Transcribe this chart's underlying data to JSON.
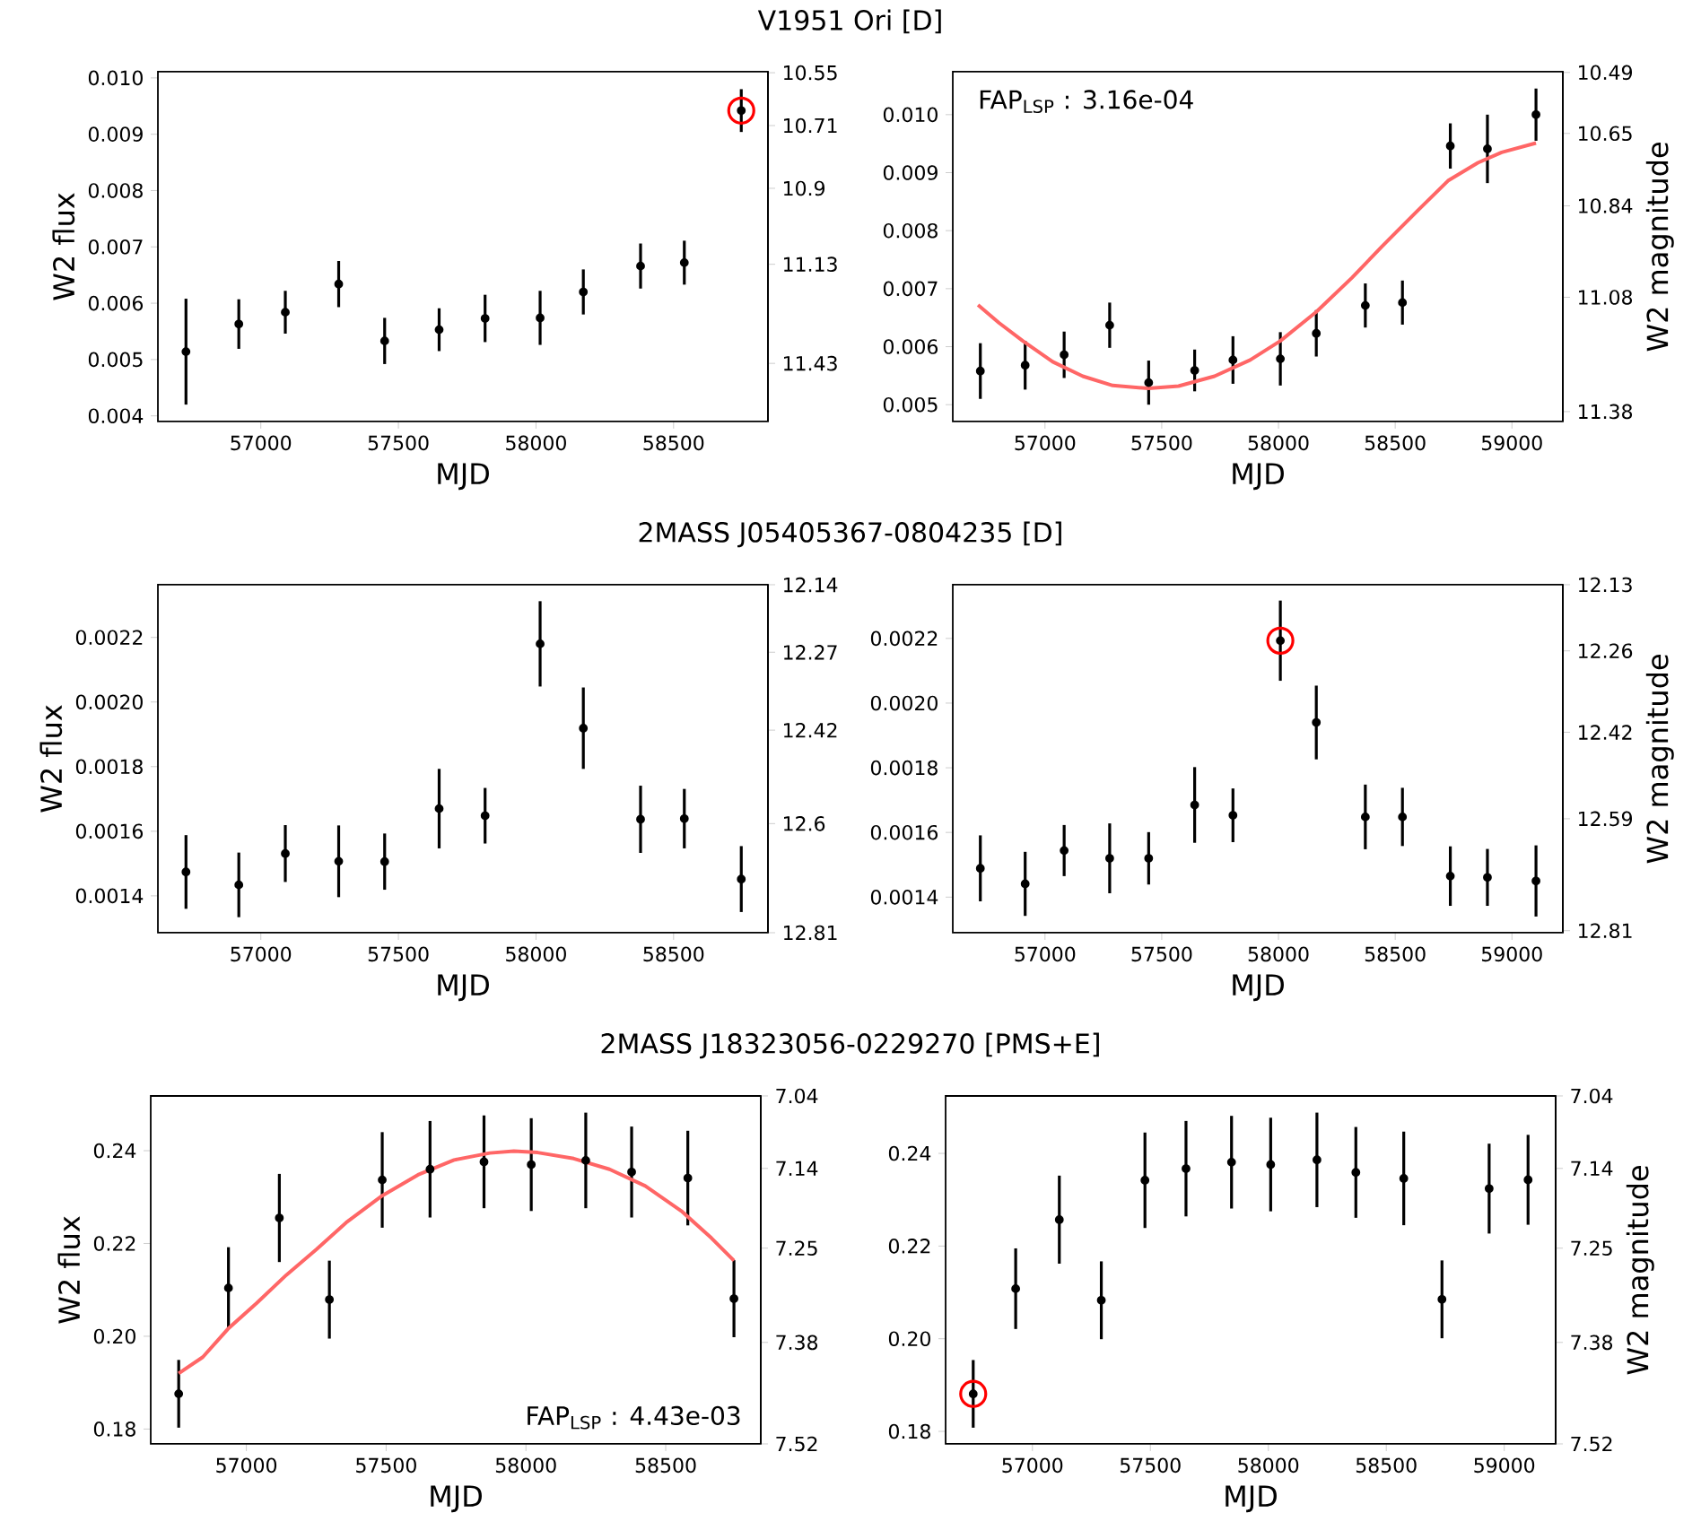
{
  "chart_data": [
    {
      "type": "scatter",
      "title": "V1951 Ori  [D]",
      "xlabel": "MJD",
      "ylabel": "W2 flux",
      "marker": "circle",
      "xlim": [
        56626,
        58843
      ],
      "xticks": [
        57000,
        57500,
        58000,
        58500
      ],
      "ylim": [
        0.0039,
        0.01011
      ],
      "yticks": [
        0.004,
        0.005,
        0.006,
        0.007,
        0.008,
        0.009,
        {
          "value": 0.01,
          "label": "0.010"
        }
      ],
      "y2lim": [
        11.606,
        10.547
      ],
      "y2ticks": [
        10.55,
        10.71,
        10.9,
        11.13,
        11.43
      ],
      "series": [
        {
          "color": "#000000",
          "x": [
            56728,
            56920,
            57089,
            57283,
            57450,
            57648,
            57815,
            58015,
            58172,
            58380,
            58539,
            58746
          ],
          "values": [
            0.00514,
            0.00563,
            0.00584,
            0.00634,
            0.00533,
            0.00553,
            0.00573,
            0.00574,
            0.0062,
            0.00666,
            0.00672,
            0.00942
          ],
          "errors": [
            0.00094,
            0.00044,
            0.00038,
            0.00041,
            0.00041,
            0.00038,
            0.00042,
            0.00048,
            0.0004,
            0.0004,
            0.00039,
            0.00038
          ]
        },
        {
          "color": "#ff0000",
          "x": [
            58746
          ],
          "values": [
            0.00942
          ]
        }
      ]
    },
    {
      "type": "scatter",
      "xlabel": "MJD",
      "y2label": "W2 magnitude",
      "marker": "circle",
      "annotations": [
        "FAP$_{LSP}$ : 3.16e-04"
      ],
      "xlim": [
        56605,
        59218
      ],
      "xticks": [
        57000,
        57500,
        58000,
        58500,
        59000
      ],
      "ylim": [
        0.00471,
        0.01074
      ],
      "yticks": [
        0.005,
        0.006,
        0.007,
        0.008,
        0.009,
        {
          "value": 0.01,
          "label": "0.010"
        }
      ],
      "y2lim": [
        11.406,
        10.488
      ],
      "y2ticks": [
        10.49,
        10.65,
        10.84,
        11.08,
        11.38
      ],
      "series": [
        {
          "color": "#000000",
          "x": [
            56723,
            56915,
            57082,
            57277,
            57444,
            57641,
            57805,
            58008,
            58162,
            58372,
            58531,
            58736,
            58895,
            59103
          ],
          "values": [
            0.00558,
            0.00568,
            0.00586,
            0.00637,
            0.00538,
            0.00559,
            0.00577,
            0.00579,
            0.00623,
            0.00671,
            0.00676,
            0.00946,
            0.00941,
            0.01
          ],
          "errors": [
            0.00048,
            0.00042,
            0.0004,
            0.00039,
            0.00038,
            0.00036,
            0.00041,
            0.00046,
            0.0004,
            0.00038,
            0.00038,
            0.00039,
            0.00059,
            0.00045
          ]
        },
        {
          "type": "line",
          "marker": "none",
          "color": "#ff6666",
          "x": [
            56713,
            56803,
            56905,
            57033,
            57162,
            57290,
            57444,
            57572,
            57726,
            57879,
            58008,
            58162,
            58315,
            58444,
            58597,
            58726,
            58854,
            58956,
            59103
          ],
          "values": [
            0.00672,
            0.00641,
            0.0061,
            0.00574,
            0.00549,
            0.00533,
            0.00528,
            0.00532,
            0.00549,
            0.00577,
            0.0061,
            0.0066,
            0.00719,
            0.00773,
            0.00835,
            0.00886,
            0.00917,
            0.00935,
            0.00951
          ]
        }
      ]
    },
    {
      "type": "scatter",
      "title": "2MASS J05405367-0804235  [D]",
      "xlabel": "MJD",
      "ylabel": "W2 flux",
      "marker": "circle",
      "xlim": [
        56626,
        58843
      ],
      "xticks": [
        57000,
        57500,
        58000,
        58500
      ],
      "ylim": [
        0.001286,
        0.002363
      ],
      "yticks": [
        0.0014,
        0.0016,
        0.0018,
        {
          "value": 0.002,
          "label": "0.0020"
        },
        0.0022
      ],
      "y2lim": [
        12.81,
        12.14
      ],
      "y2ticks": [
        12.14,
        12.27,
        12.42,
        12.6,
        12.81
      ],
      "series": [
        {
          "color": "#000000",
          "x": [
            56728,
            56920,
            57089,
            57283,
            57450,
            57648,
            57815,
            58015,
            58172,
            58380,
            58539,
            58746
          ],
          "values": [
            0.001474,
            0.001434,
            0.001531,
            0.001507,
            0.001506,
            0.00167,
            0.001648,
            0.00218,
            0.001919,
            0.001637,
            0.001639,
            0.001452
          ],
          "errors": [
            0.000114,
            0.0001,
            8.8e-05,
            0.000111,
            8.7e-05,
            0.000123,
            8.6e-05,
            0.000132,
            0.000126,
            0.000104,
            9.2e-05,
            0.000102
          ]
        }
      ]
    },
    {
      "type": "scatter",
      "xlabel": "MJD",
      "y2label": "W2 magnitude",
      "marker": "circle",
      "xlim": [
        56605,
        59218
      ],
      "xticks": [
        57000,
        57500,
        58000,
        58500,
        59000
      ],
      "ylim": [
        0.00129,
        0.002366
      ],
      "yticks": [
        0.0014,
        0.0016,
        0.0018,
        {
          "value": 0.002,
          "label": "0.0020"
        },
        0.0022
      ],
      "y2lim": [
        12.814,
        12.13
      ],
      "y2ticks": [
        12.13,
        12.26,
        12.42,
        12.59,
        12.81
      ],
      "series": [
        {
          "color": "#000000",
          "x": [
            56723,
            56915,
            57082,
            57277,
            57444,
            57641,
            57805,
            58008,
            58162,
            58372,
            58531,
            58736,
            58895,
            59103
          ],
          "values": [
            0.001489,
            0.001441,
            0.001544,
            0.00152,
            0.00152,
            0.001685,
            0.001653,
            0.002193,
            0.00194,
            0.001648,
            0.001648,
            0.001465,
            0.001461,
            0.00145
          ],
          "errors": [
            0.000102,
            9.9e-05,
            7.9e-05,
            0.000108,
            8.1e-05,
            0.000117,
            8.3e-05,
            0.000124,
            0.000114,
            0.0001,
            9e-05,
            9.2e-05,
            8.8e-05,
            0.00011
          ]
        },
        {
          "color": "#ff0000",
          "x": [
            58008
          ],
          "values": [
            0.002193
          ]
        }
      ]
    },
    {
      "type": "scatter",
      "title": "2MASS J18323056-0229270  [PMS+E]",
      "xlabel": "MJD",
      "ylabel": "W2 flux",
      "marker": "circle",
      "annotations": [
        "FAP$_{LSP}$ : 4.43e-03"
      ],
      "xlim": [
        56658,
        58840
      ],
      "xticks": [
        57000,
        57500,
        58000,
        58500
      ],
      "ylim": [
        0.1768,
        0.2518
      ],
      "yticks": [
        0.18,
        {
          "value": 0.2,
          "label": "0.20"
        },
        0.22,
        0.24
      ],
      "y2lim": [
        7.52,
        7.04
      ],
      "y2ticks": [
        7.04,
        7.14,
        7.25,
        7.38,
        7.52
      ],
      "series": [
        {
          "color": "#000000",
          "x": [
            56758,
            56936,
            57118,
            57297,
            57486,
            57657,
            57850,
            58019,
            58214,
            58378,
            58579,
            58744
          ],
          "values": [
            0.1876,
            0.2104,
            0.2255,
            0.2079,
            0.2337,
            0.236,
            0.2376,
            0.237,
            0.2379,
            0.2354,
            0.2341,
            0.2081
          ],
          "errors": [
            0.0073,
            0.0088,
            0.0095,
            0.0084,
            0.0103,
            0.0104,
            0.01,
            0.01,
            0.0103,
            0.0098,
            0.0102,
            0.0083
          ]
        },
        {
          "type": "line",
          "marker": "none",
          "color": "#ff6666",
          "x": [
            56758,
            56844,
            56936,
            57036,
            57143,
            57250,
            57357,
            57486,
            57614,
            57743,
            57871,
            57957,
            58042,
            58171,
            58299,
            58427,
            58556,
            58663,
            58744
          ],
          "values": [
            0.192,
            0.1955,
            0.2017,
            0.2071,
            0.2132,
            0.2187,
            0.2245,
            0.2303,
            0.2348,
            0.238,
            0.2395,
            0.2399,
            0.2396,
            0.2383,
            0.236,
            0.2324,
            0.227,
            0.2212,
            0.2163
          ]
        }
      ]
    },
    {
      "type": "scatter",
      "xlabel": "MJD",
      "y2label": "W2 magnitude",
      "marker": "circle",
      "xlim": [
        56632,
        59218
      ],
      "xticks": [
        57000,
        57500,
        58000,
        58500,
        59000
      ],
      "ylim": [
        0.1773,
        0.2524
      ],
      "yticks": [
        0.18,
        {
          "value": 0.2,
          "label": "0.20"
        },
        0.22,
        0.24
      ],
      "y2lim": [
        7.52,
        7.04
      ],
      "y2ticks": [
        7.04,
        7.14,
        7.25,
        7.38,
        7.52
      ],
      "series": [
        {
          "color": "#000000",
          "x": [
            56749,
            56929,
            57114,
            57292,
            57477,
            57651,
            57844,
            58010,
            58206,
            58371,
            58574,
            58736,
            58936,
            59101
          ],
          "values": [
            0.1881,
            0.2108,
            0.2257,
            0.2083,
            0.2342,
            0.2367,
            0.2381,
            0.2376,
            0.2386,
            0.2359,
            0.2346,
            0.2085,
            0.2324,
            0.2343
          ],
          "errors": [
            0.0073,
            0.0087,
            0.0095,
            0.0084,
            0.0103,
            0.0103,
            0.01,
            0.0101,
            0.0102,
            0.0098,
            0.0101,
            0.0084,
            0.0097,
            0.0097
          ]
        },
        {
          "color": "#ff0000",
          "x": [
            56749
          ],
          "values": [
            0.1881
          ]
        }
      ]
    }
  ]
}
